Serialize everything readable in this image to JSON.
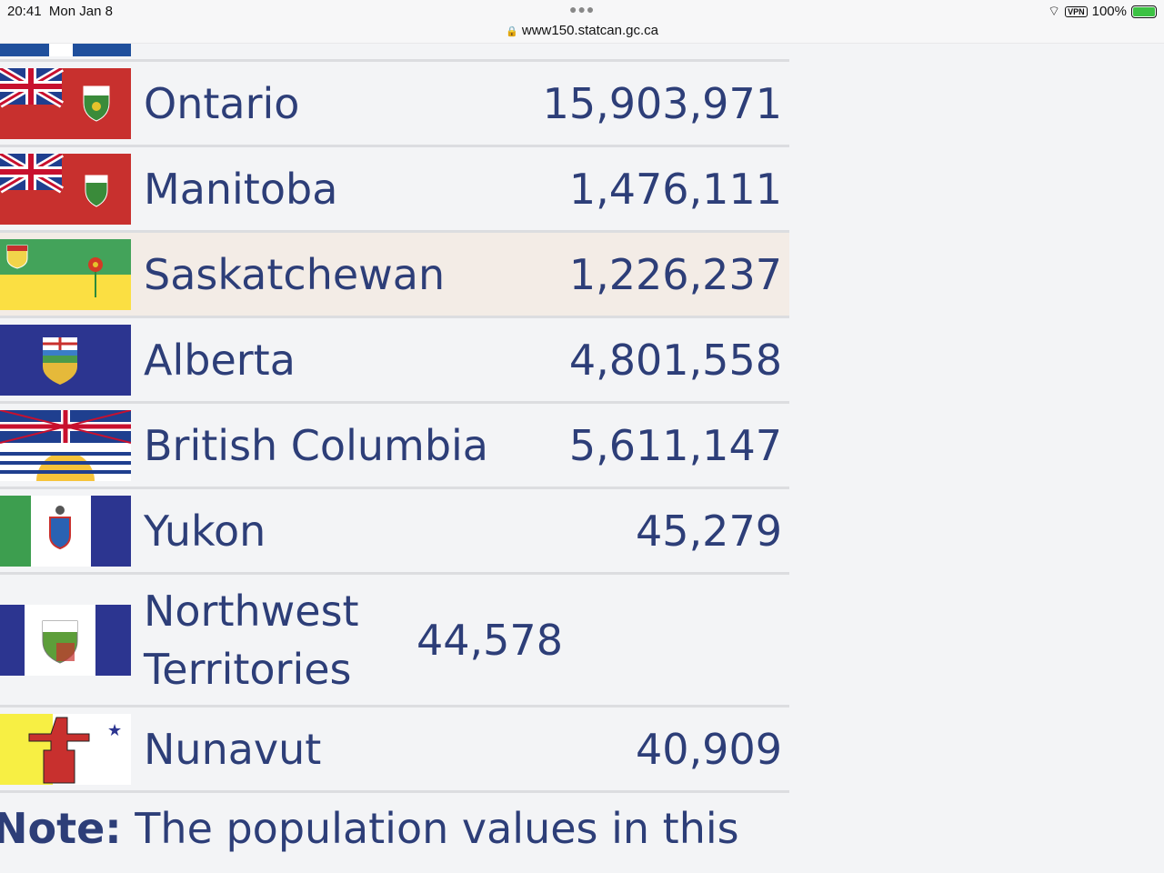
{
  "status_bar": {
    "time": "20:41",
    "date": "Mon Jan 8",
    "url": "www150.statcan.gc.ca",
    "battery": "100%",
    "vpn": "VPN"
  },
  "rows": [
    {
      "name": "Ontario",
      "value": "15,903,971",
      "flag": "ontario-flag"
    },
    {
      "name": "Manitoba",
      "value": "1,476,111",
      "flag": "manitoba-flag"
    },
    {
      "name": "Saskatchewan",
      "value": "1,226,237",
      "flag": "saskatchewan-flag",
      "highlighted": true
    },
    {
      "name": "Alberta",
      "value": "4,801,558",
      "flag": "alberta-flag"
    },
    {
      "name": "British Columbia",
      "value": "5,611,147",
      "flag": "british-columbia-flag"
    },
    {
      "name": "Yukon",
      "value": "45,279",
      "flag": "yukon-flag"
    },
    {
      "name": "Northwest Territories",
      "value": "44,578",
      "flag": "northwest-territories-flag"
    },
    {
      "name": "Nunavut",
      "value": "40,909",
      "flag": "nunavut-flag"
    }
  ],
  "note": {
    "label": "Note:",
    "text": " The population values in this"
  },
  "colors": {
    "text": "#2d3e78",
    "highlight": "#f3ece6"
  }
}
